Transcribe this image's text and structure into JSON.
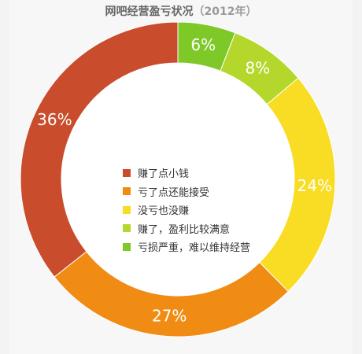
{
  "title": {
    "main": "网吧经营盈亏状况",
    "year": "（2012年）"
  },
  "chart_data": {
    "type": "pie",
    "title": "网吧经营盈亏状况（2012年）",
    "donut": true,
    "start": "12 o'clock, clockwise",
    "slices": [
      {
        "label": "亏损严重，难以维持经营",
        "value": 6,
        "display": "6%",
        "color": "#7ec828"
      },
      {
        "label": "赚了，盈利比较满意",
        "value": 8,
        "display": "8%",
        "color": "#b3d82b"
      },
      {
        "label": "没亏也没赚",
        "value": 24,
        "display": "24%",
        "color": "#f9dc24"
      },
      {
        "label": "亏了点还能接受",
        "value": 27,
        "display": "27%",
        "color": "#f08c14"
      },
      {
        "label": "赚了点小钱",
        "value": 36,
        "display": "36%",
        "color": "#c94d2c"
      }
    ],
    "legend": [
      {
        "label": "赚了点小钱",
        "color": "#c94d2c"
      },
      {
        "label": "亏了点还能接受",
        "color": "#f08c14"
      },
      {
        "label": "没亏也没赚",
        "color": "#f9dc24"
      },
      {
        "label": "赚了，盈利比较满意",
        "color": "#b3d82b"
      },
      {
        "label": "亏损严重，难以维持经营",
        "color": "#7ec828"
      }
    ],
    "legend_placement": "center"
  }
}
